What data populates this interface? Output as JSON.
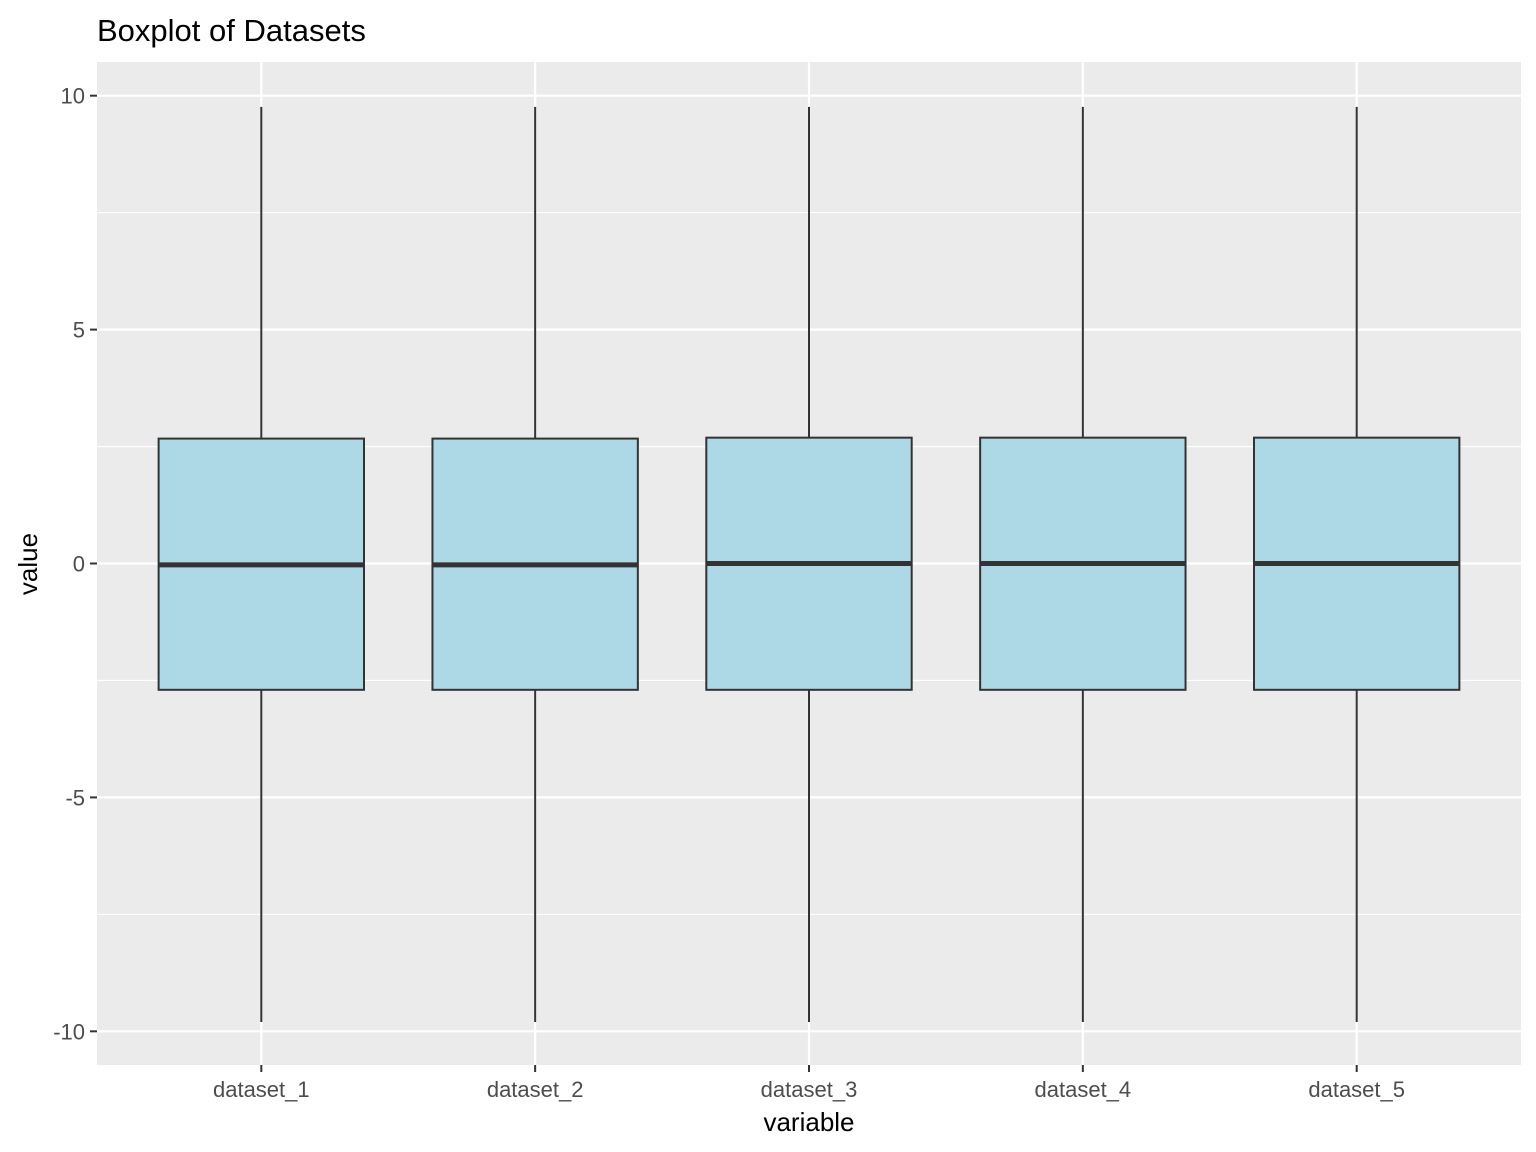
{
  "chart_data": {
    "type": "boxplot",
    "title": "Boxplot of Datasets",
    "xlabel": "variable",
    "ylabel": "value",
    "categories": [
      "dataset_1",
      "dataset_2",
      "dataset_3",
      "dataset_4",
      "dataset_5"
    ],
    "boxes": [
      {
        "category": "dataset_1",
        "min": -9.8,
        "q1": -2.7,
        "median": -0.03,
        "q3": 2.67,
        "max": 9.76
      },
      {
        "category": "dataset_2",
        "min": -9.8,
        "q1": -2.7,
        "median": -0.03,
        "q3": 2.67,
        "max": 9.76
      },
      {
        "category": "dataset_3",
        "min": -9.8,
        "q1": -2.7,
        "median": 0.0,
        "q3": 2.69,
        "max": 9.76
      },
      {
        "category": "dataset_4",
        "min": -9.8,
        "q1": -2.7,
        "median": 0.0,
        "q3": 2.69,
        "max": 9.76
      },
      {
        "category": "dataset_5",
        "min": -9.8,
        "q1": -2.7,
        "median": 0.0,
        "q3": 2.69,
        "max": 9.76
      }
    ],
    "yticks": [
      -10,
      -5,
      0,
      5,
      10
    ],
    "ylim": [
      -10.72,
      10.72
    ],
    "grid": true,
    "colors": {
      "panel": "#EBEBEB",
      "grid": "#FFFFFF",
      "box_fill": "#ADD8E6",
      "box_line": "#333333"
    }
  }
}
